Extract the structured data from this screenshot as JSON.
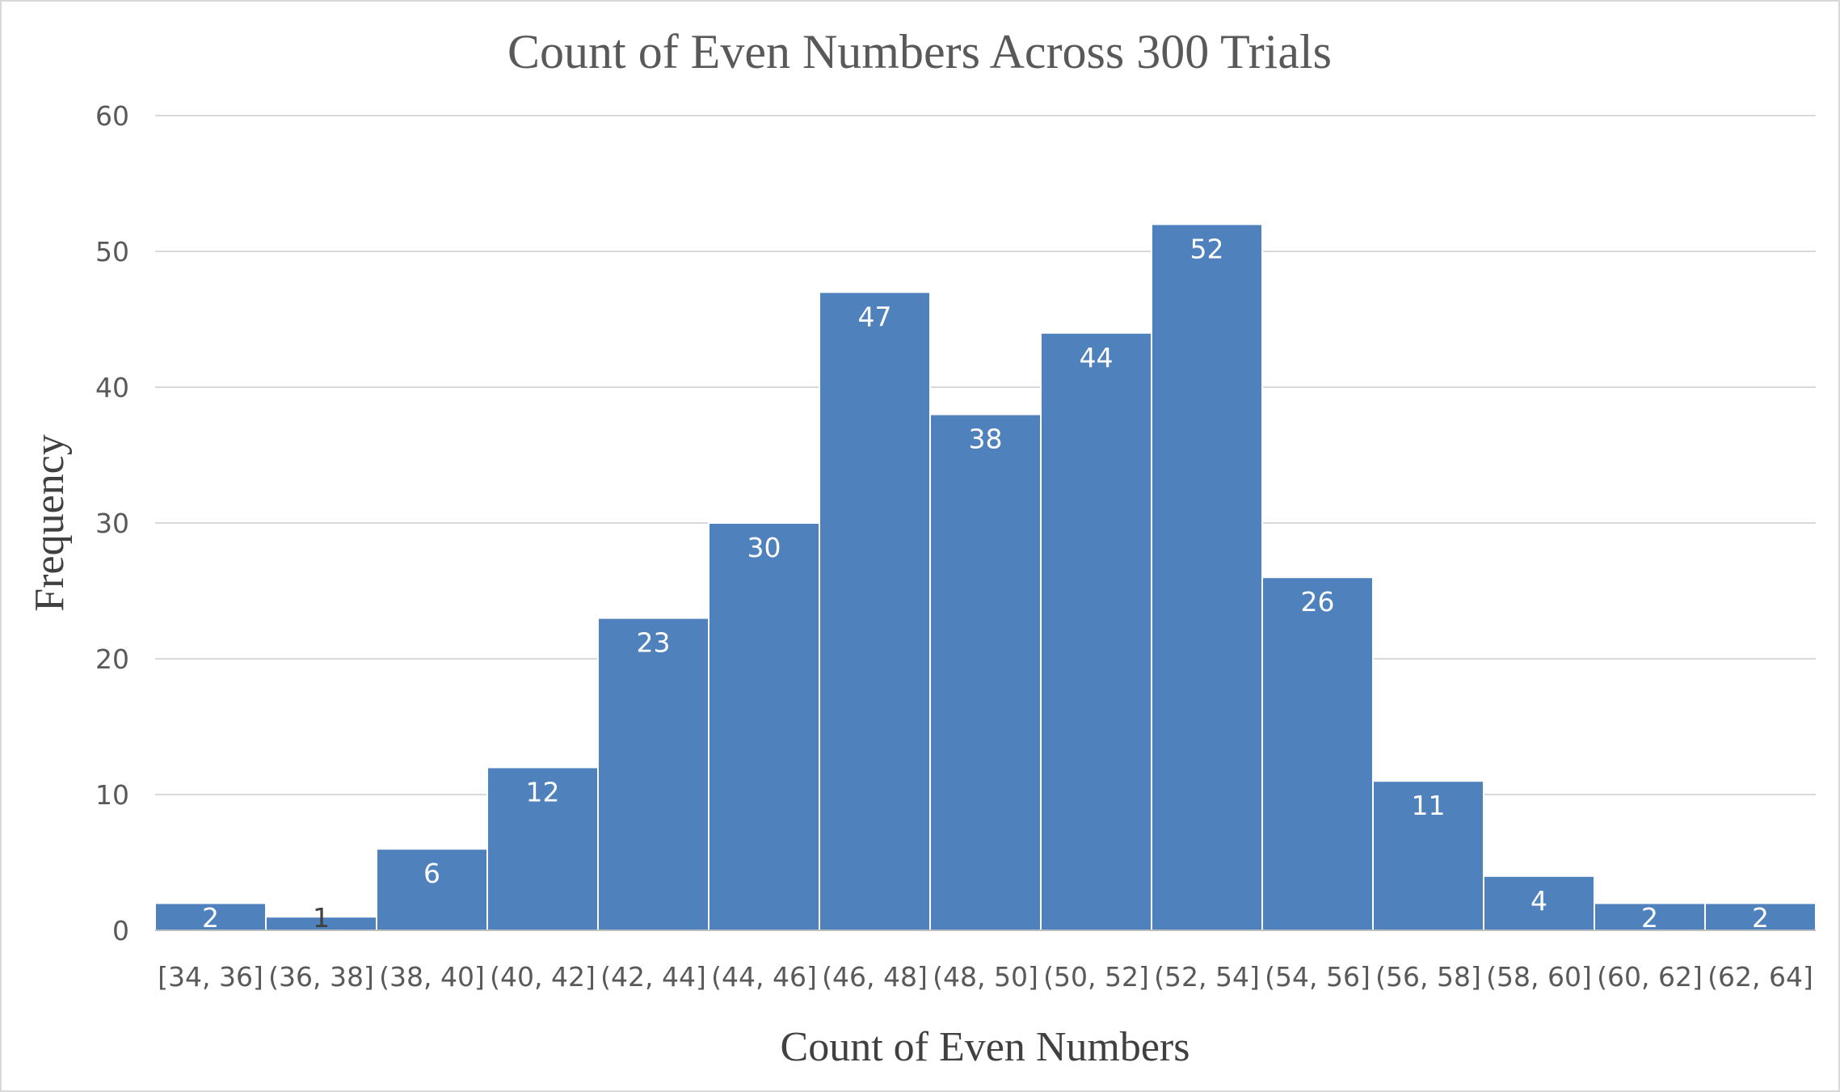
{
  "chart_data": {
    "type": "bar",
    "title": "Count of Even Numbers Across 300 Trials",
    "xlabel": "Count of Even Numbers",
    "ylabel": "Frequency",
    "categories": [
      "[34, 36]",
      "(36, 38]",
      "(38, 40]",
      "(40, 42]",
      "(42, 44]",
      "(44, 46]",
      "(46, 48]",
      "(48, 50]",
      "(50, 52]",
      "(52, 54]",
      "(54, 56]",
      "(56, 58]",
      "(58, 60]",
      "(60, 62]",
      "(62, 64]"
    ],
    "values": [
      2,
      1,
      6,
      12,
      23,
      30,
      47,
      38,
      44,
      52,
      26,
      11,
      4,
      2,
      2
    ],
    "ylim": [
      0,
      60
    ],
    "yticks": [
      0,
      10,
      20,
      30,
      40,
      50,
      60
    ],
    "grid": true,
    "legend": "none",
    "bar_color": "#4f81bd"
  }
}
